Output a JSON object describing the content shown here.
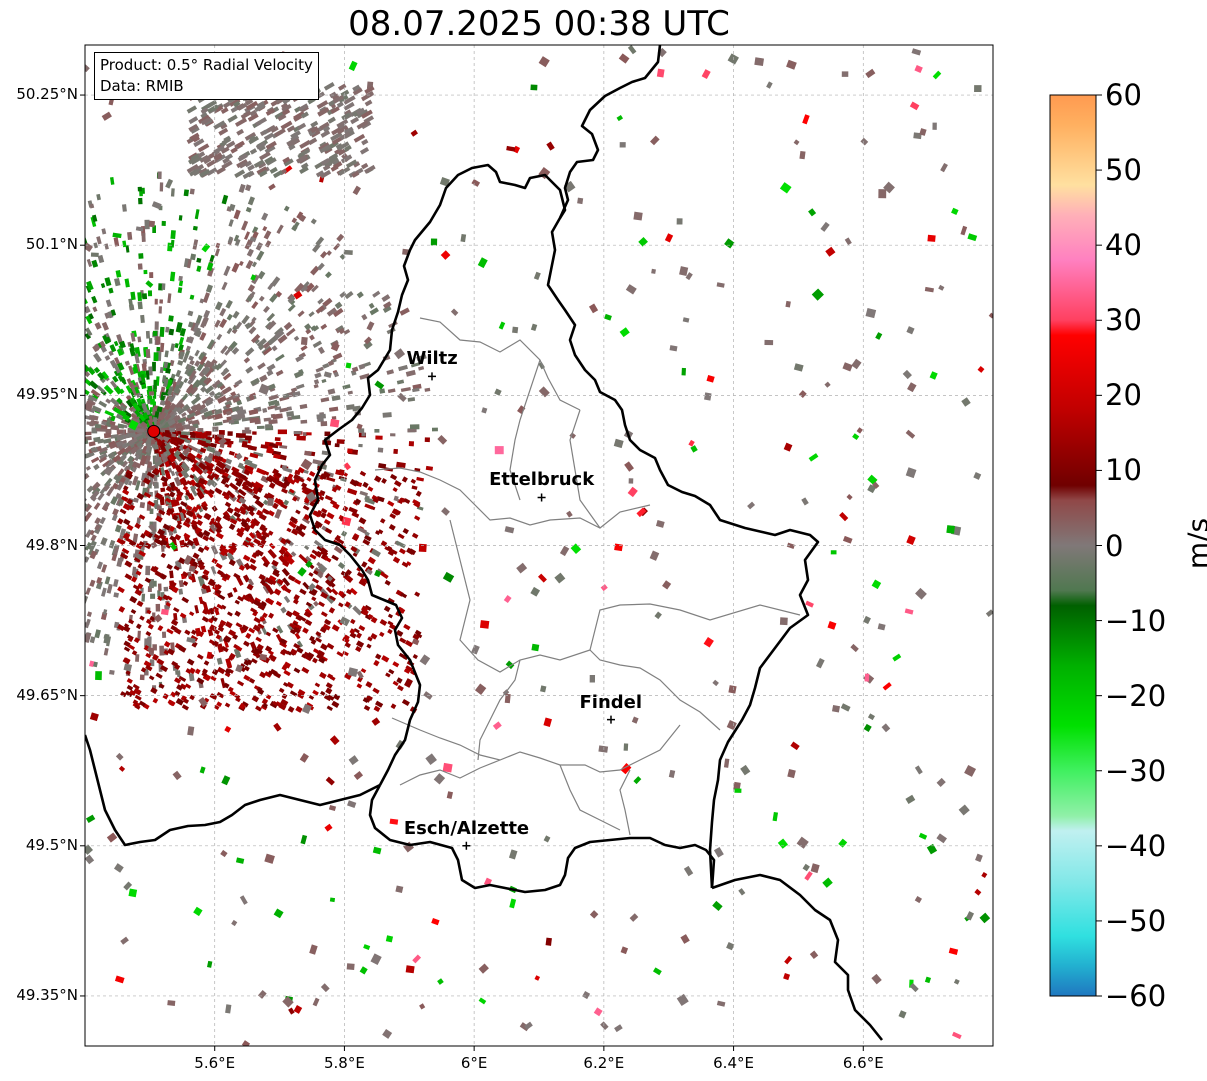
{
  "title": "08.07.2025 00:38 UTC",
  "info": {
    "product": "Product: 0.5° Radial Velocity",
    "data": "Data: RMIB"
  },
  "lat_ticks": [
    {
      "value": 50.25,
      "label": "50.25°N"
    },
    {
      "value": 50.1,
      "label": "50.1°N"
    },
    {
      "value": 49.95,
      "label": "49.95°N"
    },
    {
      "value": 49.8,
      "label": "49.8°N"
    },
    {
      "value": 49.65,
      "label": "49.65°N"
    },
    {
      "value": 49.5,
      "label": "49.5°N"
    },
    {
      "value": 49.35,
      "label": "49.35°N"
    }
  ],
  "lon_ticks": [
    {
      "value": 5.6,
      "label": "5.6°E"
    },
    {
      "value": 5.8,
      "label": "5.8°E"
    },
    {
      "value": 6.0,
      "label": "6°E"
    },
    {
      "value": 6.2,
      "label": "6.2°E"
    },
    {
      "value": 6.4,
      "label": "6.4°E"
    },
    {
      "value": 6.6,
      "label": "6.6°E"
    }
  ],
  "extent": {
    "lon_min": 5.4,
    "lon_max": 6.8,
    "lat_min": 49.3,
    "lat_max": 50.3
  },
  "cities": [
    {
      "name": "Wiltz",
      "lon": 5.935,
      "lat": 49.969
    },
    {
      "name": "Ettelbruck",
      "lon": 6.104,
      "lat": 49.848
    },
    {
      "name": "Findel",
      "lon": 6.211,
      "lat": 49.626
    },
    {
      "name": "Esch/Alzette",
      "lon": 5.988,
      "lat": 49.5
    }
  ],
  "radar_site": {
    "lon": 5.506,
    "lat": 49.914,
    "color": "#e00000"
  },
  "colorbar": {
    "unit": "m/s",
    "min": -60,
    "max": 60,
    "ticks": [
      {
        "value": 60,
        "label": "60"
      },
      {
        "value": 50,
        "label": "50"
      },
      {
        "value": 40,
        "label": "40"
      },
      {
        "value": 30,
        "label": "30"
      },
      {
        "value": 20,
        "label": "20"
      },
      {
        "value": 10,
        "label": "10"
      },
      {
        "value": 0,
        "label": "0"
      },
      {
        "value": -10,
        "label": "−10"
      },
      {
        "value": -20,
        "label": "−20"
      },
      {
        "value": -30,
        "label": "−30"
      },
      {
        "value": -40,
        "label": "−40"
      },
      {
        "value": -50,
        "label": "−50"
      },
      {
        "value": -60,
        "label": "−60"
      }
    ],
    "stops": [
      {
        "value": -60,
        "color": "#1f77c0"
      },
      {
        "value": -56,
        "color": "#22b0d0"
      },
      {
        "value": -52,
        "color": "#30e0e0"
      },
      {
        "value": -45,
        "color": "#80e8e8"
      },
      {
        "value": -38,
        "color": "#c0f0f0"
      },
      {
        "value": -36,
        "color": "#90f0a8"
      },
      {
        "value": -30,
        "color": "#40f060"
      },
      {
        "value": -24,
        "color": "#00e000"
      },
      {
        "value": -16,
        "color": "#00b000"
      },
      {
        "value": -8,
        "color": "#006000"
      },
      {
        "value": -6,
        "color": "#507850"
      },
      {
        "value": 0,
        "color": "#807878"
      },
      {
        "value": 6,
        "color": "#904848"
      },
      {
        "value": 8,
        "color": "#700000"
      },
      {
        "value": 18,
        "color": "#c00000"
      },
      {
        "value": 28,
        "color": "#ff0000"
      },
      {
        "value": 30,
        "color": "#ff4060"
      },
      {
        "value": 38,
        "color": "#ff80c0"
      },
      {
        "value": 44,
        "color": "#ffb0b8"
      },
      {
        "value": 48,
        "color": "#ffe0a0"
      },
      {
        "value": 56,
        "color": "#ffb060"
      },
      {
        "value": 60,
        "color": "#ff9a50"
      }
    ]
  }
}
